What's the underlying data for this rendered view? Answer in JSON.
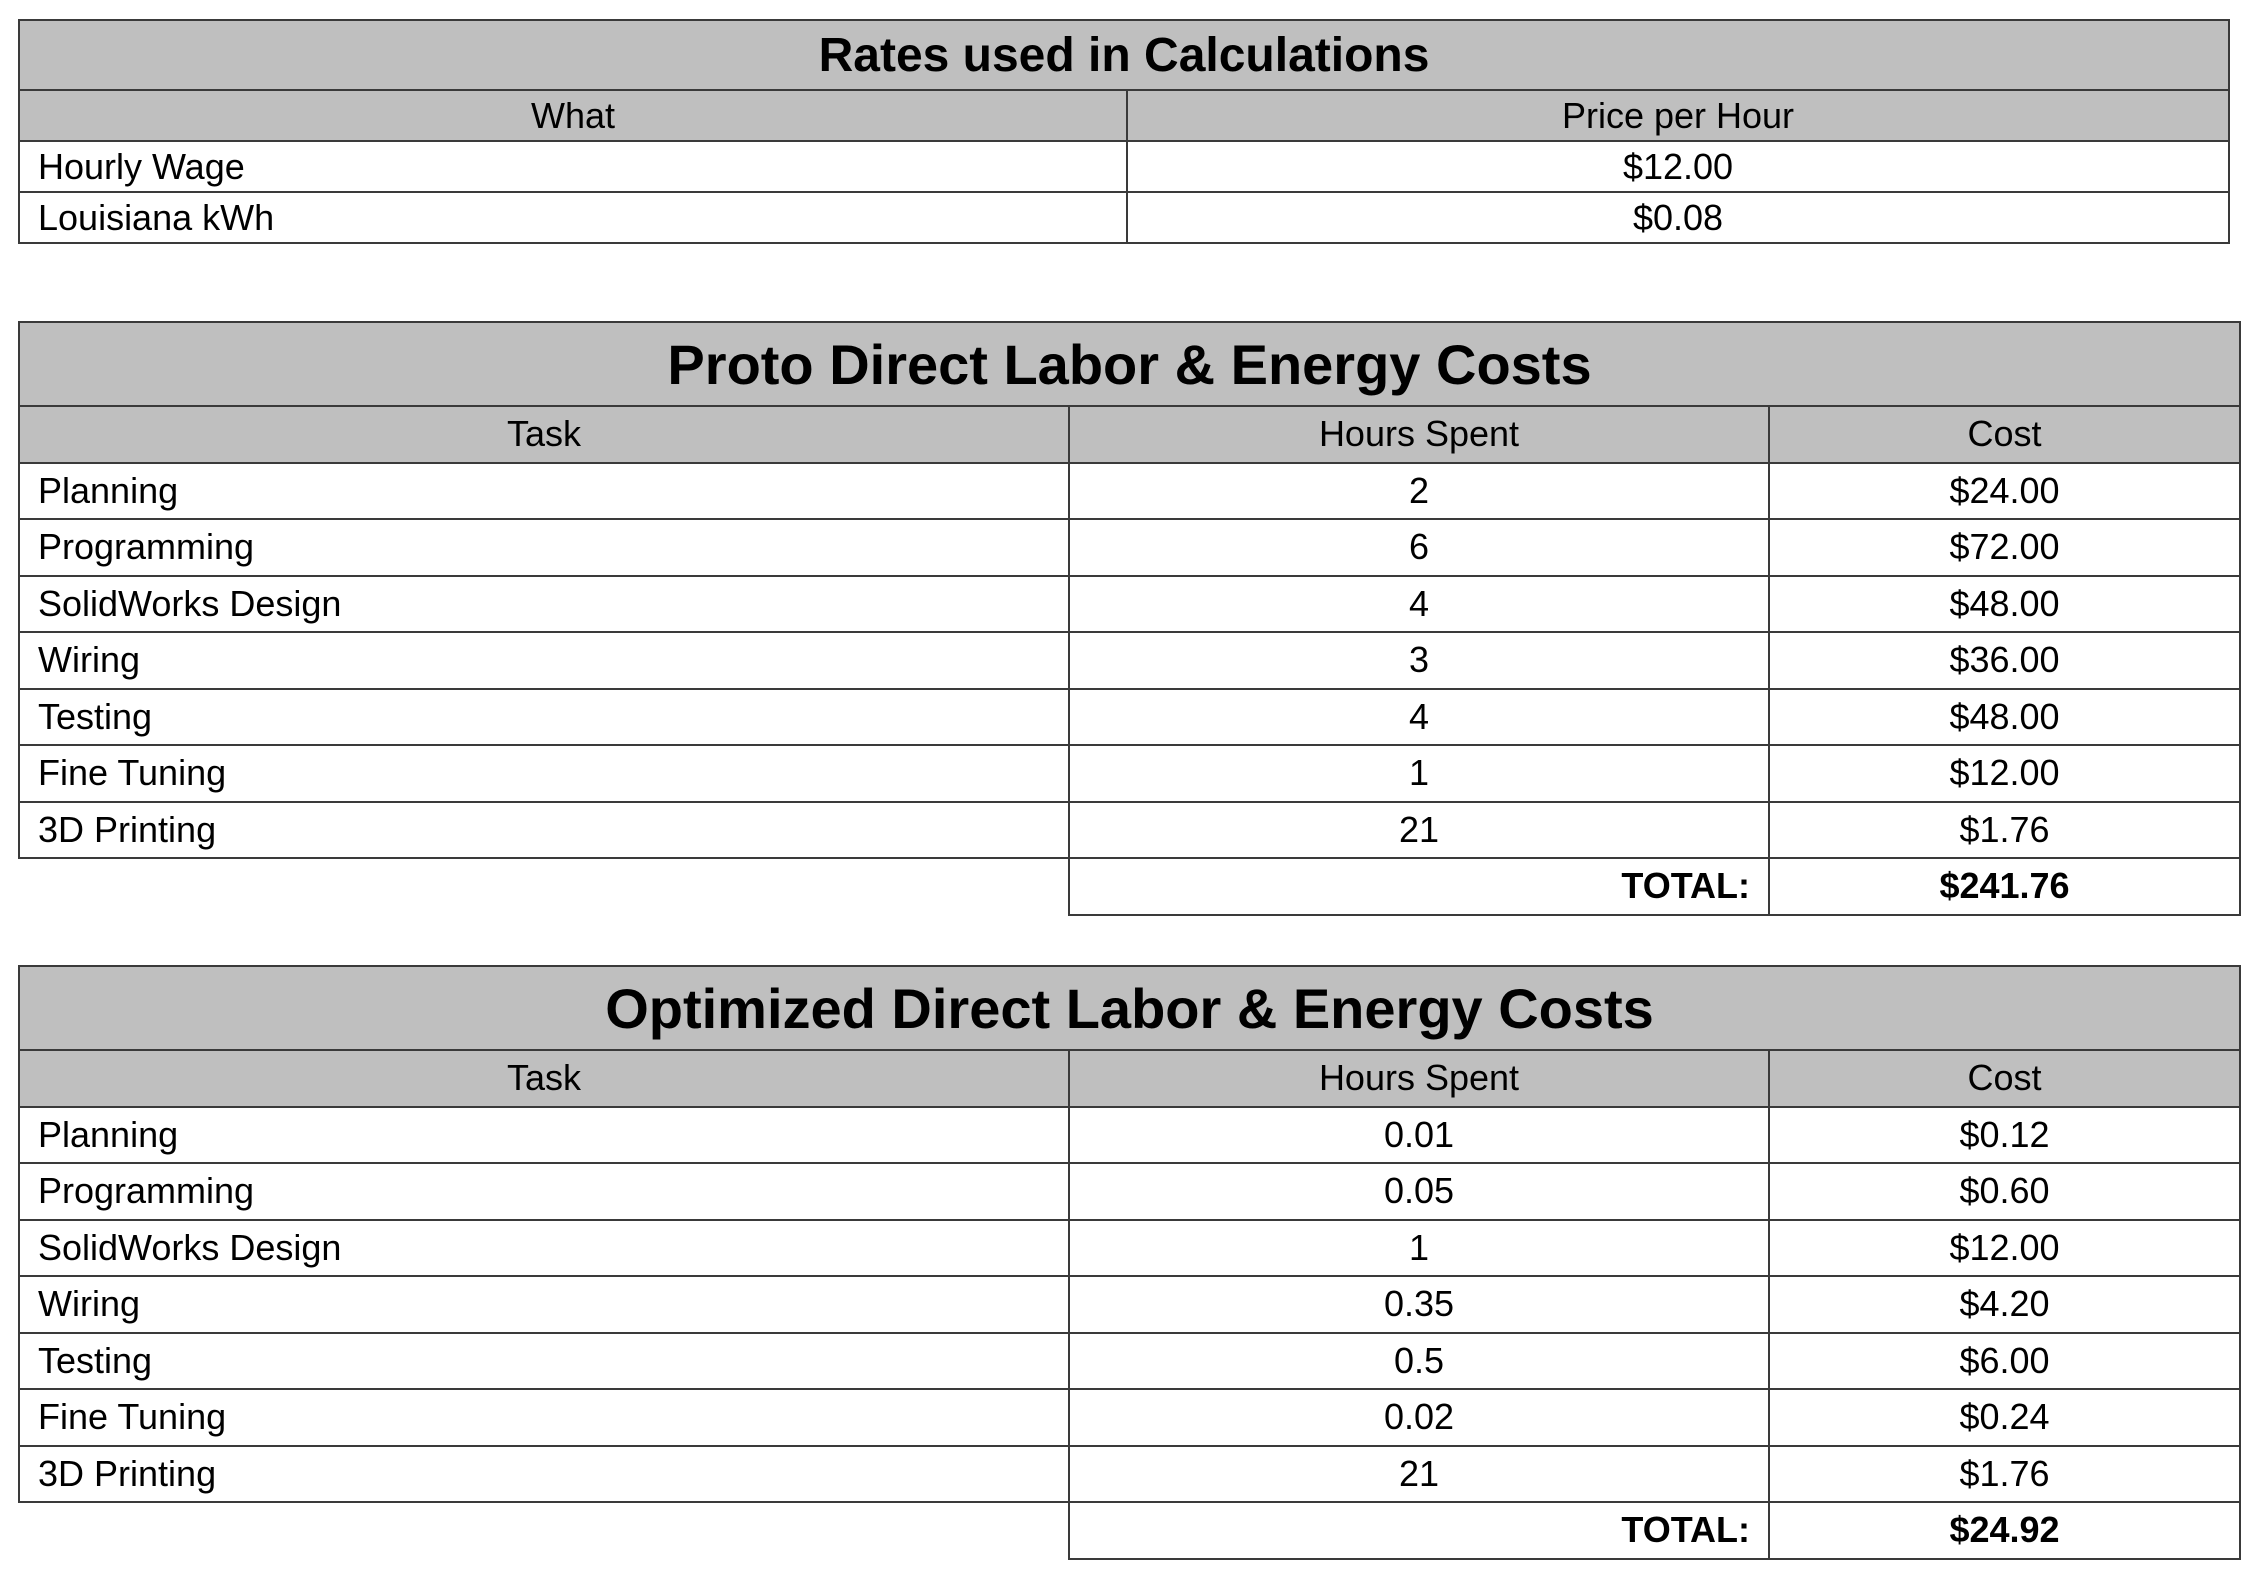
{
  "rates": {
    "title": "Rates used in Calculations",
    "headers": [
      "What",
      "Price per Hour"
    ],
    "rows": [
      {
        "what": "Hourly Wage",
        "price": "$12.00"
      },
      {
        "what": "Louisiana kWh",
        "price": "$0.08"
      }
    ]
  },
  "proto": {
    "title": "Proto Direct Labor & Energy Costs",
    "headers": [
      "Task",
      "Hours Spent",
      "Cost"
    ],
    "rows": [
      {
        "task": "Planning",
        "hours": "2",
        "cost": "$24.00"
      },
      {
        "task": "Programming",
        "hours": "6",
        "cost": "$72.00"
      },
      {
        "task": "SolidWorks Design",
        "hours": "4",
        "cost": "$48.00"
      },
      {
        "task": "Wiring",
        "hours": "3",
        "cost": "$36.00"
      },
      {
        "task": "Testing",
        "hours": "4",
        "cost": "$48.00"
      },
      {
        "task": "Fine Tuning",
        "hours": "1",
        "cost": "$12.00"
      },
      {
        "task": "3D Printing",
        "hours": "21",
        "cost": "$1.76"
      }
    ],
    "total_label": "TOTAL:",
    "total_value": "$241.76"
  },
  "optimized": {
    "title": "Optimized Direct Labor & Energy Costs",
    "headers": [
      "Task",
      "Hours Spent",
      "Cost"
    ],
    "rows": [
      {
        "task": "Planning",
        "hours": "0.01",
        "cost": "$0.12"
      },
      {
        "task": "Programming",
        "hours": "0.05",
        "cost": "$0.60"
      },
      {
        "task": "SolidWorks Design",
        "hours": "1",
        "cost": "$12.00"
      },
      {
        "task": "Wiring",
        "hours": "0.35",
        "cost": "$4.20"
      },
      {
        "task": "Testing",
        "hours": "0.5",
        "cost": "$6.00"
      },
      {
        "task": "Fine Tuning",
        "hours": "0.02",
        "cost": "$0.24"
      },
      {
        "task": "3D Printing",
        "hours": "21",
        "cost": "$1.76"
      }
    ],
    "total_label": "TOTAL:",
    "total_value": "$24.92"
  }
}
